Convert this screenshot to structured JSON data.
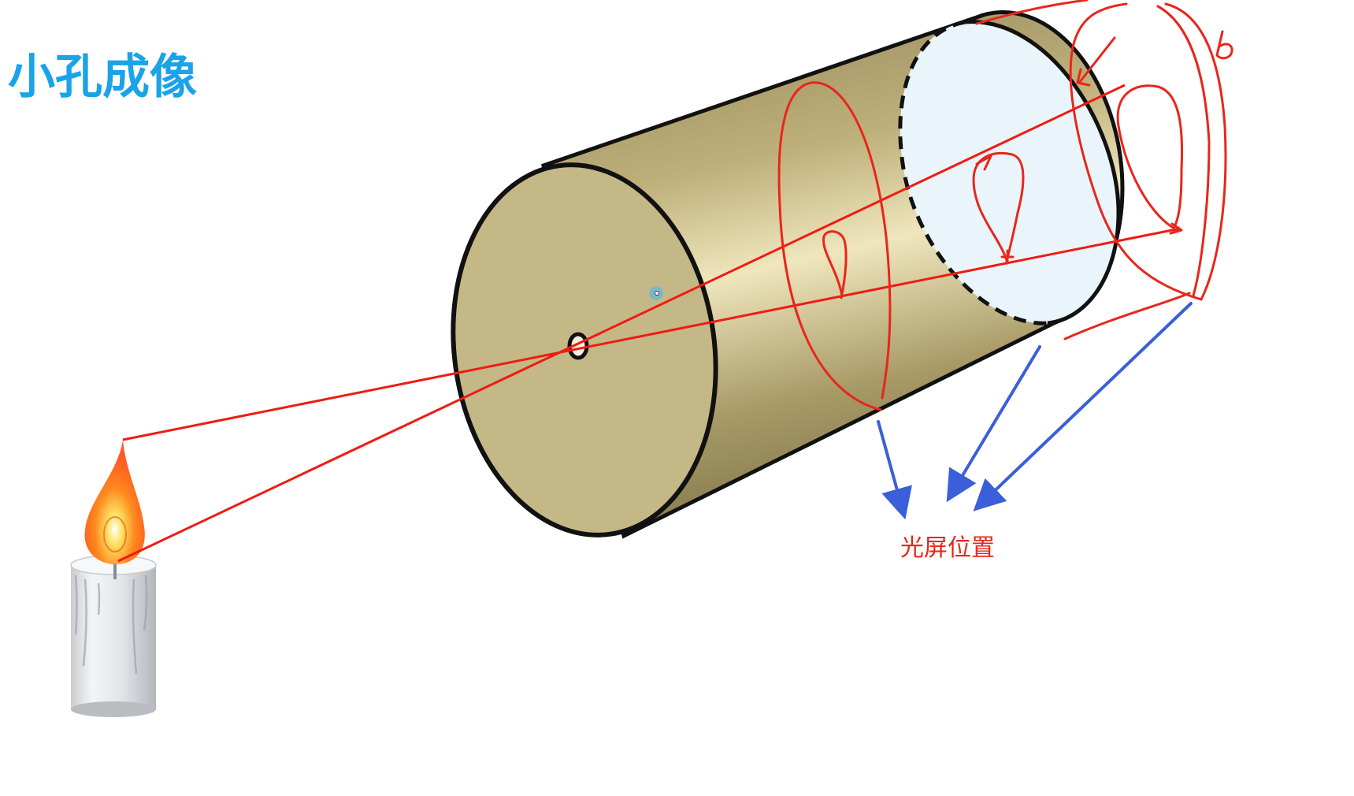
{
  "title": "小孔成像",
  "screen_label": "光屏位置",
  "colors": {
    "title": "#1aa3e8",
    "ray": "#ee1c12",
    "annotation_red": "#e8261b",
    "arrow_blue": "#3a5fd9",
    "label": "#e8261b",
    "box_face": "#c4b886",
    "screen": "#eaf5fb",
    "outline": "#111111"
  },
  "icons": {
    "candle": "candle-icon",
    "pinhole": "pinhole-icon",
    "cursor": "cursor-dot-icon"
  }
}
